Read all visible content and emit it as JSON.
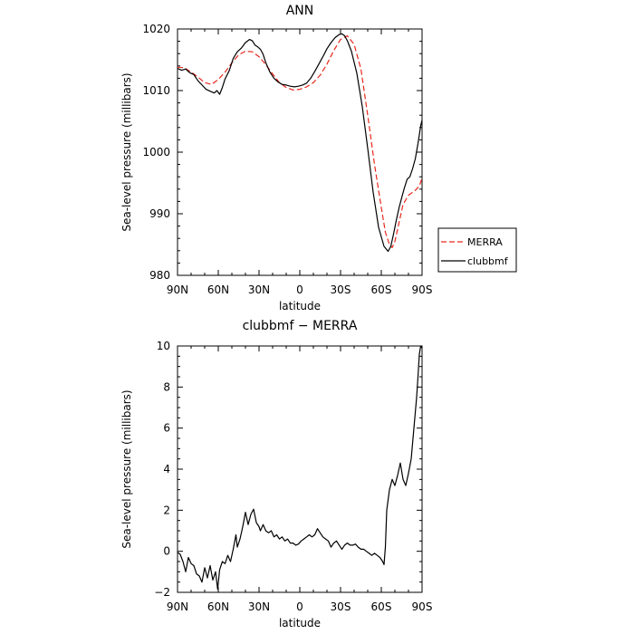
{
  "chart_data": [
    {
      "type": "line",
      "title": "ANN",
      "xlabel": "latitude",
      "ylabel": "Sea-level pressure (millibars)",
      "xlim": [
        90,
        -90
      ],
      "ylim": [
        980,
        1020
      ],
      "x_ticks": [
        90,
        60,
        30,
        0,
        -30,
        -60,
        -90
      ],
      "x_tick_labels": [
        "90N",
        "60N",
        "30N",
        "0",
        "30S",
        "60S",
        "90S"
      ],
      "y_ticks": [
        980,
        990,
        1000,
        1010,
        1020
      ],
      "y_tick_labels": [
        "980",
        "990",
        "1000",
        "1010",
        "1020"
      ],
      "grid": false,
      "legend_position": "right",
      "series": [
        {
          "name": "MERRA",
          "color": "#e8281e",
          "dash": true,
          "x": [
            90,
            85,
            80,
            75,
            70,
            65,
            60,
            55,
            50,
            45,
            40,
            35,
            30,
            25,
            20,
            15,
            10,
            5,
            0,
            -5,
            -10,
            -15,
            -20,
            -25,
            -30,
            -35,
            -40,
            -45,
            -50,
            -55,
            -60,
            -63,
            -66,
            -68,
            -70,
            -73,
            -76,
            -80,
            -85,
            -88,
            -90
          ],
          "values": [
            1013.8,
            1013.7,
            1013.0,
            1012.2,
            1011.3,
            1011.0,
            1011.8,
            1013.0,
            1014.5,
            1015.8,
            1016.4,
            1016.3,
            1015.5,
            1014.2,
            1012.7,
            1011.3,
            1010.5,
            1010.1,
            1010.2,
            1010.6,
            1011.3,
            1012.5,
            1014.3,
            1016.5,
            1018.3,
            1018.9,
            1017.5,
            1013.5,
            1006.0,
            998.0,
            991.0,
            987.0,
            985.0,
            984.5,
            985.5,
            988.5,
            991.5,
            993.0,
            993.8,
            994.5,
            995.8
          ]
        },
        {
          "name": "clubbmf",
          "color": "#000000",
          "dash": false,
          "x": [
            90,
            87,
            84,
            81,
            78,
            75,
            72,
            69,
            66,
            63,
            61,
            59,
            57,
            55,
            52,
            49,
            46,
            43,
            40,
            37,
            35,
            33,
            31,
            29,
            27,
            25,
            22,
            19,
            16,
            13,
            10,
            7,
            4,
            1,
            -2,
            -5,
            -8,
            -11,
            -14,
            -17,
            -20,
            -23,
            -26,
            -29,
            -31,
            -33,
            -35,
            -38,
            -42,
            -46,
            -50,
            -54,
            -58,
            -62,
            -65,
            -67,
            -69,
            -71,
            -73,
            -75,
            -77,
            -79,
            -81,
            -83,
            -85,
            -87,
            -89,
            -90
          ],
          "values": [
            1013.6,
            1013.3,
            1013.5,
            1012.9,
            1012.6,
            1011.6,
            1010.9,
            1010.2,
            1009.9,
            1009.6,
            1010.0,
            1009.4,
            1010.5,
            1011.9,
            1013.2,
            1015.2,
            1016.3,
            1016.9,
            1017.8,
            1018.3,
            1018.1,
            1017.4,
            1017.1,
            1016.7,
            1015.9,
            1014.5,
            1013.0,
            1012.0,
            1011.4,
            1011.0,
            1010.9,
            1010.7,
            1010.6,
            1010.7,
            1010.9,
            1011.2,
            1012.0,
            1013.1,
            1014.3,
            1015.5,
            1016.8,
            1017.8,
            1018.6,
            1019.1,
            1019.2,
            1018.9,
            1018.1,
            1016.4,
            1012.8,
            1007.4,
            1000.6,
            993.5,
            987.8,
            984.7,
            983.9,
            984.7,
            986.7,
            988.9,
            990.9,
            992.6,
            994.2,
            995.6,
            996.0,
            997.3,
            998.9,
            1001.4,
            1004.3,
            1005.2
          ]
        }
      ]
    },
    {
      "type": "line",
      "title": "clubbmf − MERRA",
      "xlabel": "latitude",
      "ylabel": "Sea-level pressure (millibars)",
      "xlim": [
        90,
        -90
      ],
      "ylim": [
        -2,
        10
      ],
      "x_ticks": [
        90,
        60,
        30,
        0,
        -30,
        -60,
        -90
      ],
      "x_tick_labels": [
        "90N",
        "60N",
        "30N",
        "0",
        "30S",
        "60S",
        "90S"
      ],
      "y_ticks": [
        -2,
        0,
        2,
        4,
        6,
        8,
        10
      ],
      "y_tick_labels": [
        "−2",
        "0",
        "2",
        "4",
        "6",
        "8",
        "10"
      ],
      "grid": false,
      "series": [
        {
          "color": "#000000",
          "dash": false,
          "x": [
            90,
            88,
            86,
            84,
            82,
            80,
            78,
            76,
            74,
            72,
            70,
            68,
            66,
            64,
            62,
            60.5,
            59,
            57,
            55,
            53,
            51,
            49,
            47,
            46,
            44,
            42,
            40,
            38,
            36,
            34,
            32,
            30,
            29,
            27,
            25,
            23,
            21,
            19,
            17,
            15,
            13,
            11,
            9,
            7,
            5,
            3,
            1,
            -1,
            -3,
            -5,
            -7,
            -9,
            -11,
            -13,
            -15,
            -17,
            -19,
            -21,
            -23,
            -25,
            -27,
            -29,
            -31,
            -33,
            -35,
            -37,
            -39,
            -41,
            -43,
            -45,
            -47,
            -49,
            -51,
            -53,
            -55,
            -57,
            -59,
            -61,
            -62,
            -63,
            -64,
            -65,
            -66,
            -68,
            -70,
            -72,
            -74,
            -76,
            -78,
            -80,
            -82,
            -84,
            -86,
            -87,
            -88,
            -89,
            -90
          ],
          "values": [
            -0.05,
            -0.15,
            -0.5,
            -1.0,
            -0.3,
            -0.6,
            -0.7,
            -1.1,
            -1.2,
            -1.5,
            -0.8,
            -1.3,
            -0.7,
            -1.4,
            -1.0,
            -1.85,
            -0.9,
            -0.5,
            -0.6,
            -0.2,
            -0.5,
            0.1,
            0.8,
            0.2,
            0.6,
            1.2,
            1.9,
            1.3,
            1.8,
            2.05,
            1.4,
            1.2,
            1.0,
            1.3,
            1.0,
            0.9,
            1.0,
            0.7,
            0.8,
            0.6,
            0.7,
            0.5,
            0.6,
            0.4,
            0.4,
            0.3,
            0.35,
            0.5,
            0.6,
            0.7,
            0.8,
            0.7,
            0.8,
            1.1,
            0.9,
            0.7,
            0.6,
            0.5,
            0.2,
            0.4,
            0.5,
            0.3,
            0.1,
            0.3,
            0.4,
            0.3,
            0.3,
            0.35,
            0.2,
            0.1,
            0.1,
            0.0,
            -0.1,
            -0.2,
            -0.1,
            -0.2,
            -0.3,
            -0.5,
            -0.65,
            0.2,
            2.0,
            2.5,
            3.0,
            3.5,
            3.2,
            3.7,
            4.3,
            3.5,
            3.2,
            3.8,
            4.5,
            6.0,
            7.5,
            8.5,
            9.6,
            10.0,
            9.9
          ]
        }
      ]
    }
  ]
}
